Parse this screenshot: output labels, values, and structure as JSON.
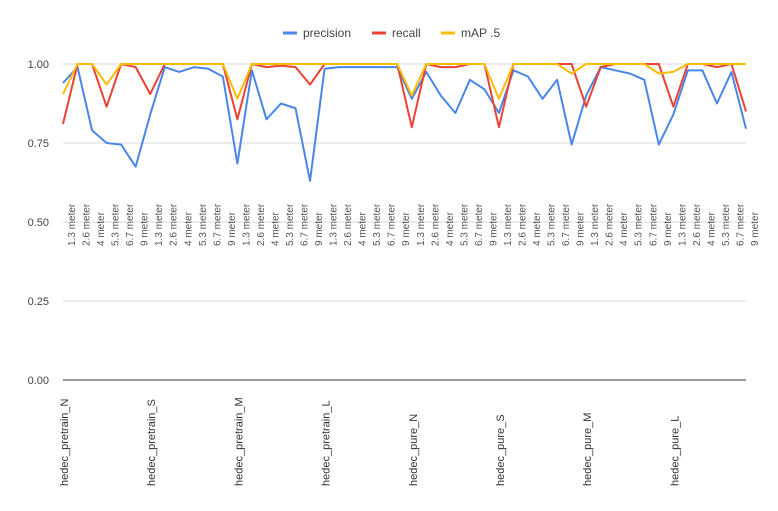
{
  "chart_data": {
    "type": "line",
    "title": "",
    "xlabel": "",
    "ylabel": "",
    "ylim": [
      0,
      1
    ],
    "y_ticks": [
      "0.00",
      "0.25",
      "0.50",
      "0.75",
      "1.00"
    ],
    "grid": true,
    "legend_position": "top-center",
    "groups": [
      "hedec_pretrain_N",
      "hedec_pretrain_S",
      "hedec_pretrain_M",
      "hedec_pretrain_L",
      "hedec_pure_N",
      "hedec_pure_S",
      "hedec_pure_M",
      "hedec_pure_L"
    ],
    "categories": [
      "1.3 meter",
      "2.6 meter",
      "4 meter",
      "5.3 meter",
      "6.7 meter",
      "9 meter",
      "1.3 meter",
      "2.6 meter",
      "4 meter",
      "5.3 meter",
      "6.7 meter",
      "9 meter",
      "1.3 meter",
      "2.6 meter",
      "4 meter",
      "5.3 meter",
      "6.7 meter",
      "9 meter",
      "1.3 meter",
      "2.6 meter",
      "4 meter",
      "5.3 meter",
      "6.7 meter",
      "9 meter",
      "1.3 meter",
      "2.6 meter",
      "4 meter",
      "5.3 meter",
      "6.7 meter",
      "9 meter",
      "1.3 meter",
      "2.6 meter",
      "4 meter",
      "5.3 meter",
      "6.7 meter",
      "9 meter",
      "1.3 meter",
      "2.6 meter",
      "4 meter",
      "5.3 meter",
      "6.7 meter",
      "9 meter",
      "1.3 meter",
      "2.6 meter",
      "4 meter",
      "5.3 meter",
      "6.7 meter",
      "9 meter"
    ],
    "series": [
      {
        "name": "precision",
        "color": "#4a86e8",
        "values": [
          0.94,
          0.99,
          0.79,
          0.75,
          0.745,
          0.675,
          0.84,
          0.99,
          0.975,
          0.99,
          0.985,
          0.96,
          0.685,
          0.98,
          0.825,
          0.875,
          0.86,
          0.63,
          0.985,
          0.99,
          0.99,
          0.99,
          0.99,
          0.99,
          0.89,
          0.975,
          0.9,
          0.845,
          0.95,
          0.92,
          0.845,
          0.98,
          0.96,
          0.89,
          0.95,
          0.745,
          0.9,
          0.99,
          0.98,
          0.97,
          0.95,
          0.745,
          0.84,
          0.98,
          0.98,
          0.875,
          0.975,
          0.795
        ]
      },
      {
        "name": "recall",
        "color": "#ea4335",
        "values": [
          0.81,
          1.0,
          1.0,
          0.865,
          1.0,
          0.99,
          0.905,
          1.0,
          1.0,
          1.0,
          1.0,
          1.0,
          0.825,
          1.0,
          0.99,
          0.995,
          0.99,
          0.935,
          1.0,
          1.0,
          1.0,
          1.0,
          1.0,
          1.0,
          0.8,
          1.0,
          0.99,
          0.99,
          1.0,
          1.0,
          0.8,
          1.0,
          1.0,
          1.0,
          1.0,
          1.0,
          0.865,
          0.99,
          1.0,
          1.0,
          1.0,
          1.0,
          0.865,
          1.0,
          1.0,
          0.99,
          1.0,
          0.85
        ]
      },
      {
        "name": "mAP .5",
        "color": "#fbbc04",
        "values": [
          0.905,
          1.0,
          1.0,
          0.935,
          1.0,
          1.0,
          1.0,
          1.0,
          1.0,
          1.0,
          1.0,
          1.0,
          0.89,
          1.0,
          1.0,
          1.0,
          1.0,
          1.0,
          1.0,
          1.0,
          1.0,
          1.0,
          1.0,
          1.0,
          0.9,
          1.0,
          1.0,
          1.0,
          1.0,
          1.0,
          0.89,
          1.0,
          1.0,
          1.0,
          1.0,
          0.97,
          1.0,
          1.0,
          1.0,
          1.0,
          1.0,
          0.97,
          0.975,
          1.0,
          1.0,
          1.0,
          1.0,
          1.0
        ]
      }
    ]
  }
}
